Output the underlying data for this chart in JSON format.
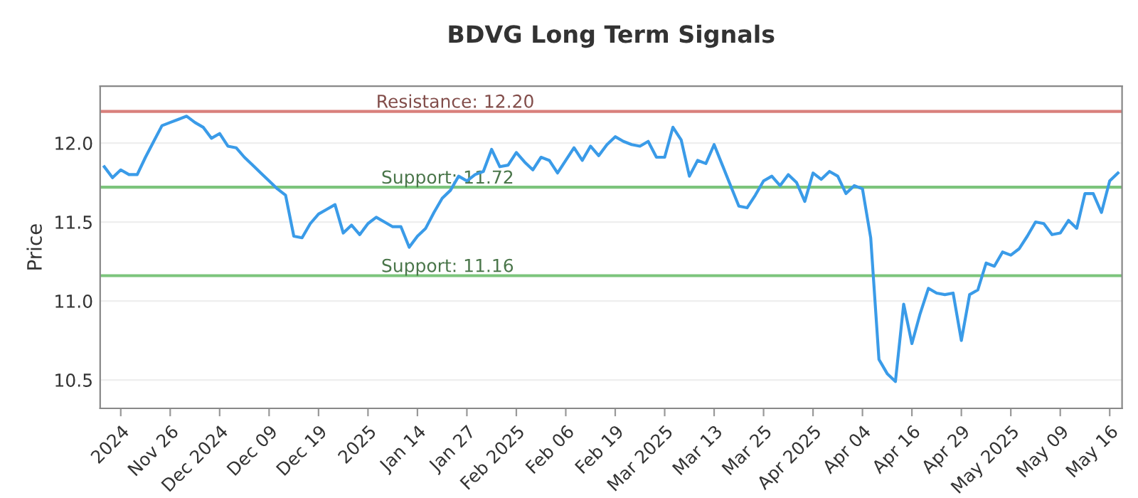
{
  "chart_data": {
    "type": "line",
    "title": "BDVG Long Term Signals",
    "ylabel": "Price",
    "categories": [
      null,
      null,
      "2024",
      null,
      null,
      null,
      null,
      null,
      "Nov 26",
      null,
      null,
      null,
      null,
      null,
      "Dec 2024",
      null,
      null,
      null,
      null,
      null,
      "Dec 09",
      null,
      null,
      null,
      null,
      null,
      "Dec 19",
      null,
      null,
      null,
      null,
      null,
      "2025",
      null,
      null,
      null,
      null,
      null,
      "Jan 14",
      null,
      null,
      null,
      null,
      null,
      "Jan 27",
      null,
      null,
      null,
      null,
      null,
      "Feb 2025",
      null,
      null,
      null,
      null,
      null,
      "Feb 06",
      null,
      null,
      null,
      null,
      null,
      "Feb 19",
      null,
      null,
      null,
      null,
      null,
      "Mar 2025",
      null,
      null,
      null,
      null,
      null,
      "Mar 13",
      null,
      null,
      null,
      null,
      null,
      "Mar 25",
      null,
      null,
      null,
      null,
      null,
      "Apr 2025",
      null,
      null,
      null,
      null,
      null,
      "Apr 04",
      null,
      null,
      null,
      null,
      null,
      "Apr 16",
      null,
      null,
      null,
      null,
      null,
      "Apr 29",
      null,
      null,
      null,
      null,
      null,
      "May 2025",
      null,
      null,
      null,
      null,
      null,
      "May 09",
      null,
      null,
      null,
      null,
      null,
      "May 16",
      null
    ],
    "series": [
      {
        "color": "#3a9be8",
        "values": [
          11.85,
          11.78,
          11.83,
          11.8,
          11.8,
          11.91,
          12.01,
          12.11,
          12.13,
          12.15,
          12.17,
          12.13,
          12.1,
          12.03,
          12.06,
          11.98,
          11.97,
          11.91,
          11.86,
          11.81,
          11.76,
          11.71,
          11.67,
          11.41,
          11.4,
          11.49,
          11.55,
          11.58,
          11.61,
          11.43,
          11.48,
          11.42,
          11.49,
          11.53,
          11.5,
          11.47,
          11.47,
          11.34,
          11.41,
          11.46,
          11.56,
          11.65,
          11.7,
          11.79,
          11.76,
          11.8,
          11.82,
          11.96,
          11.85,
          11.86,
          11.94,
          11.88,
          11.83,
          11.91,
          11.89,
          11.81,
          11.89,
          11.97,
          11.89,
          11.98,
          11.92,
          11.99,
          12.04,
          12.01,
          11.99,
          11.98,
          12.01,
          11.91,
          11.91,
          12.1,
          12.02,
          11.79,
          11.89,
          11.87,
          11.99,
          11.86,
          11.73,
          11.6,
          11.59,
          11.67,
          11.76,
          11.79,
          11.73,
          11.8,
          11.75,
          11.63,
          11.81,
          11.77,
          11.82,
          11.79,
          11.68,
          11.73,
          11.71,
          11.4,
          10.63,
          10.54,
          10.49,
          10.98,
          10.73,
          10.92,
          11.08,
          11.05,
          11.04,
          11.05,
          10.75,
          11.04,
          11.07,
          11.24,
          11.22,
          11.31,
          11.29,
          11.33,
          11.41,
          11.5,
          11.49,
          11.42,
          11.43,
          11.51,
          11.46,
          11.68,
          11.68,
          11.56,
          11.76,
          11.81
        ]
      }
    ],
    "ylim": [
      10.32,
      12.36
    ],
    "yticks": [
      {
        "value": 10.5,
        "label": "10.5"
      },
      {
        "value": 11.0,
        "label": "11.0"
      },
      {
        "value": 11.5,
        "label": "11.5"
      },
      {
        "value": 12.0,
        "label": "12.0"
      }
    ],
    "ref_lines": [
      {
        "axis": "y",
        "value": 12.2,
        "label": "Resistance: 12.20",
        "color": "#d9807c"
      },
      {
        "axis": "y",
        "value": 11.72,
        "label": "Support: 11.72",
        "color": "#7cc47c"
      },
      {
        "axis": "y",
        "value": 11.16,
        "label": "Support: 11.16",
        "color": "#7cc47c"
      }
    ],
    "grid": "y",
    "marker": "none",
    "line_style": "solid"
  }
}
